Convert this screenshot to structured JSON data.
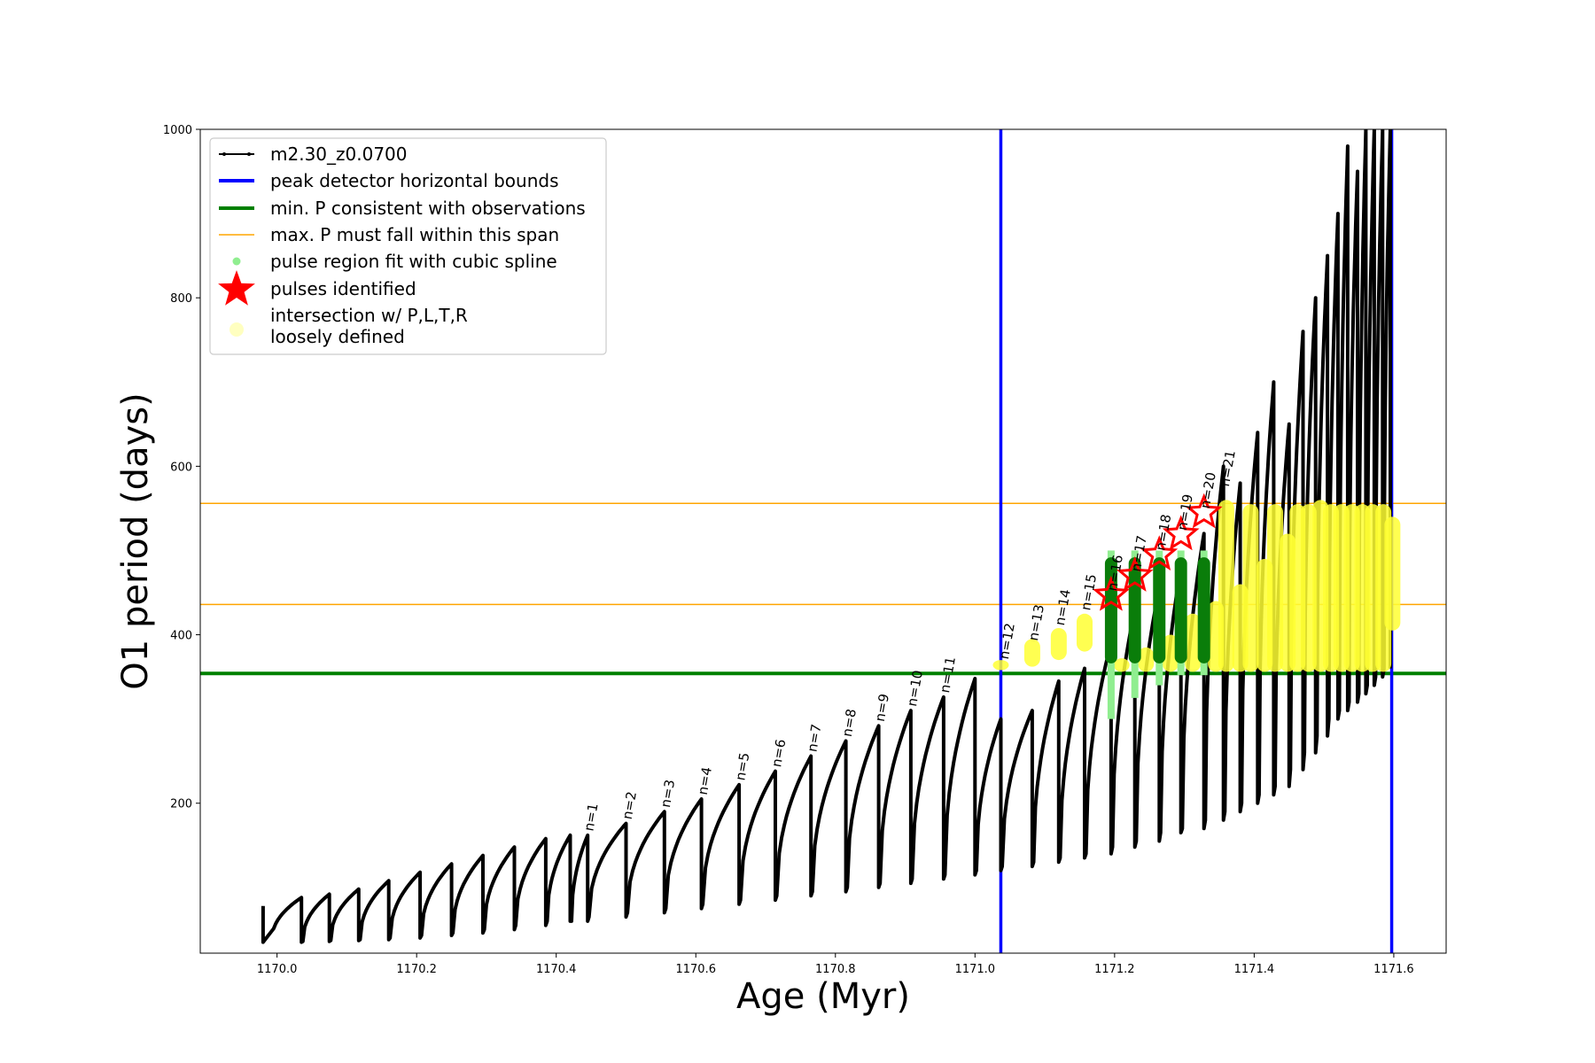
{
  "chart_data": {
    "type": "line",
    "xlabel": "Age (Myr)",
    "ylabel": "O1 period (days)",
    "xlim": [
      1169.89,
      1171.675
    ],
    "ylim": [
      22,
      1000
    ],
    "xticks": [
      1170.0,
      1170.2,
      1170.4,
      1170.6,
      1170.8,
      1171.0,
      1171.2,
      1171.4,
      1171.6
    ],
    "xtick_labels": [
      "1170.0",
      "1170.2",
      "1170.4",
      "1170.6",
      "1170.8",
      "1171.0",
      "1171.2",
      "1171.4",
      "1171.6"
    ],
    "yticks": [
      200,
      400,
      600,
      800,
      1000
    ],
    "ytick_labels": [
      "200",
      "400",
      "600",
      "800",
      "1000"
    ],
    "grid": false,
    "legend_position": "top-left",
    "legend": [
      {
        "label": "m2.30_z0.0700",
        "color": "#000000",
        "kind": "line-marker"
      },
      {
        "label": "peak detector horizontal bounds",
        "color": "#0000ff",
        "kind": "line-thick"
      },
      {
        "label": "min. P consistent with observations",
        "color": "#008000",
        "kind": "line-thick"
      },
      {
        "label": "max. P must fall within this span",
        "color": "#ffa500",
        "kind": "line-thin"
      },
      {
        "label": "pulse region fit with cubic spline",
        "color": "#90ee90",
        "kind": "dot"
      },
      {
        "label": "pulses identified",
        "color": "#ff0000",
        "kind": "star"
      },
      {
        "label": "intersection w/ P,L,T,R",
        "label2": "loosely defined",
        "color": "#ffffc0",
        "kind": "big-dot"
      }
    ],
    "vertical_bounds": [
      1171.037,
      1171.597
    ],
    "min_period_line": 354,
    "max_period_span": [
      436,
      556
    ],
    "pulse_labels": [
      {
        "text": "n=1",
        "x": 1170.445,
        "y": 162
      },
      {
        "text": "n=2",
        "x": 1170.5,
        "y": 176
      },
      {
        "text": "n=3",
        "x": 1170.555,
        "y": 190
      },
      {
        "text": "n=4",
        "x": 1170.608,
        "y": 205
      },
      {
        "text": "n=5",
        "x": 1170.662,
        "y": 222
      },
      {
        "text": "n=6",
        "x": 1170.714,
        "y": 238
      },
      {
        "text": "n=7",
        "x": 1170.765,
        "y": 256
      },
      {
        "text": "n=8",
        "x": 1170.815,
        "y": 274
      },
      {
        "text": "n=9",
        "x": 1170.862,
        "y": 292
      },
      {
        "text": "n=10",
        "x": 1170.908,
        "y": 310
      },
      {
        "text": "n=11",
        "x": 1170.955,
        "y": 326
      },
      {
        "text": "n=12",
        "x": 1171.04,
        "y": 366
      },
      {
        "text": "n=13",
        "x": 1171.082,
        "y": 388
      },
      {
        "text": "n=14",
        "x": 1171.12,
        "y": 406
      },
      {
        "text": "n=15",
        "x": 1171.157,
        "y": 424
      },
      {
        "text": "n=16",
        "x": 1171.195,
        "y": 447
      },
      {
        "text": "n=17",
        "x": 1171.229,
        "y": 470
      },
      {
        "text": "n=18",
        "x": 1171.264,
        "y": 495
      },
      {
        "text": "n=19",
        "x": 1171.295,
        "y": 519
      },
      {
        "text": "n=20",
        "x": 1171.328,
        "y": 545
      },
      {
        "text": "n=21",
        "x": 1171.356,
        "y": 571
      }
    ],
    "series": [
      {
        "name": "m2.30_z0.0700",
        "color": "#000000",
        "pulse_ages": [
          1170.035,
          1170.075,
          1170.117,
          1170.16,
          1170.205,
          1170.25,
          1170.295,
          1170.34,
          1170.385,
          1170.42,
          1170.445,
          1170.5,
          1170.555,
          1170.608,
          1170.662,
          1170.714,
          1170.765,
          1170.815,
          1170.862,
          1170.908,
          1170.955,
          1171.0,
          1171.037,
          1171.082,
          1171.12,
          1171.157,
          1171.195,
          1171.229,
          1171.264,
          1171.295,
          1171.328,
          1171.356,
          1171.38,
          1171.405,
          1171.428,
          1171.45,
          1171.47,
          1171.488,
          1171.505,
          1171.52,
          1171.534,
          1171.548,
          1171.56,
          1171.572,
          1171.584,
          1171.595
        ],
        "cycle_min": [
          35,
          36,
          37,
          38,
          40,
          43,
          46,
          50,
          55,
          60,
          60,
          65,
          70,
          75,
          80,
          85,
          90,
          95,
          100,
          105,
          110,
          115,
          120,
          125,
          130,
          135,
          140,
          148,
          155,
          165,
          170,
          180,
          190,
          200,
          210,
          220,
          240,
          260,
          280,
          300,
          310,
          320,
          330,
          340,
          350,
          360
        ],
        "cycle_max": [
          88,
          92,
          98,
          108,
          118,
          128,
          138,
          148,
          158,
          162,
          162,
          176,
          190,
          205,
          222,
          238,
          256,
          274,
          292,
          310,
          326,
          348,
          300,
          310,
          345,
          360,
          390,
          430,
          455,
          480,
          520,
          600,
          580,
          640,
          700,
          650,
          760,
          800,
          850,
          900,
          980,
          950,
          1000,
          1000,
          1000,
          1000
        ]
      }
    ],
    "cubic_spline_regions": [
      {
        "x": 1171.195,
        "ymin": 300,
        "ymax": 500
      },
      {
        "x": 1171.229,
        "ymin": 325,
        "ymax": 500
      },
      {
        "x": 1171.264,
        "ymin": 340,
        "ymax": 500
      },
      {
        "x": 1171.295,
        "ymin": 352,
        "ymax": 500
      },
      {
        "x": 1171.328,
        "ymin": 352,
        "ymax": 500
      }
    ],
    "green_bars": [
      {
        "x": 1171.195,
        "ymin": 366,
        "ymax": 492
      },
      {
        "x": 1171.229,
        "ymin": 366,
        "ymax": 492
      },
      {
        "x": 1171.264,
        "ymin": 366,
        "ymax": 492
      },
      {
        "x": 1171.295,
        "ymin": 366,
        "ymax": 492
      },
      {
        "x": 1171.328,
        "ymin": 366,
        "ymax": 492
      }
    ],
    "pulses_identified": [
      {
        "x": 1171.195,
        "y": 447
      },
      {
        "x": 1171.229,
        "y": 470
      },
      {
        "x": 1171.264,
        "y": 495
      },
      {
        "x": 1171.295,
        "y": 519
      },
      {
        "x": 1171.328,
        "y": 545
      }
    ],
    "intersection_regions": [
      {
        "x": 1171.037,
        "ymin": 358,
        "ymax": 370
      },
      {
        "x": 1171.082,
        "ymin": 362,
        "ymax": 395
      },
      {
        "x": 1171.12,
        "ymin": 370,
        "ymax": 408
      },
      {
        "x": 1171.157,
        "ymin": 380,
        "ymax": 425
      },
      {
        "x": 1171.21,
        "ymin": 356,
        "ymax": 372
      },
      {
        "x": 1171.245,
        "ymin": 356,
        "ymax": 385
      },
      {
        "x": 1171.28,
        "ymin": 356,
        "ymax": 400
      },
      {
        "x": 1171.312,
        "ymin": 356,
        "ymax": 425
      },
      {
        "x": 1171.345,
        "ymin": 356,
        "ymax": 440
      },
      {
        "x": 1171.36,
        "ymin": 356,
        "ymax": 560
      },
      {
        "x": 1171.38,
        "ymin": 356,
        "ymax": 460
      },
      {
        "x": 1171.395,
        "ymin": 356,
        "ymax": 555
      },
      {
        "x": 1171.415,
        "ymin": 356,
        "ymax": 490
      },
      {
        "x": 1171.43,
        "ymin": 356,
        "ymax": 555
      },
      {
        "x": 1171.448,
        "ymin": 356,
        "ymax": 520
      },
      {
        "x": 1171.462,
        "ymin": 356,
        "ymax": 555
      },
      {
        "x": 1171.478,
        "ymin": 356,
        "ymax": 555
      },
      {
        "x": 1171.495,
        "ymin": 356,
        "ymax": 560
      },
      {
        "x": 1171.51,
        "ymin": 356,
        "ymax": 555
      },
      {
        "x": 1171.525,
        "ymin": 356,
        "ymax": 555
      },
      {
        "x": 1171.54,
        "ymin": 356,
        "ymax": 555
      },
      {
        "x": 1171.555,
        "ymin": 356,
        "ymax": 555
      },
      {
        "x": 1171.57,
        "ymin": 356,
        "ymax": 555
      },
      {
        "x": 1171.585,
        "ymin": 356,
        "ymax": 555
      },
      {
        "x": 1171.598,
        "ymin": 405,
        "ymax": 540
      }
    ]
  }
}
